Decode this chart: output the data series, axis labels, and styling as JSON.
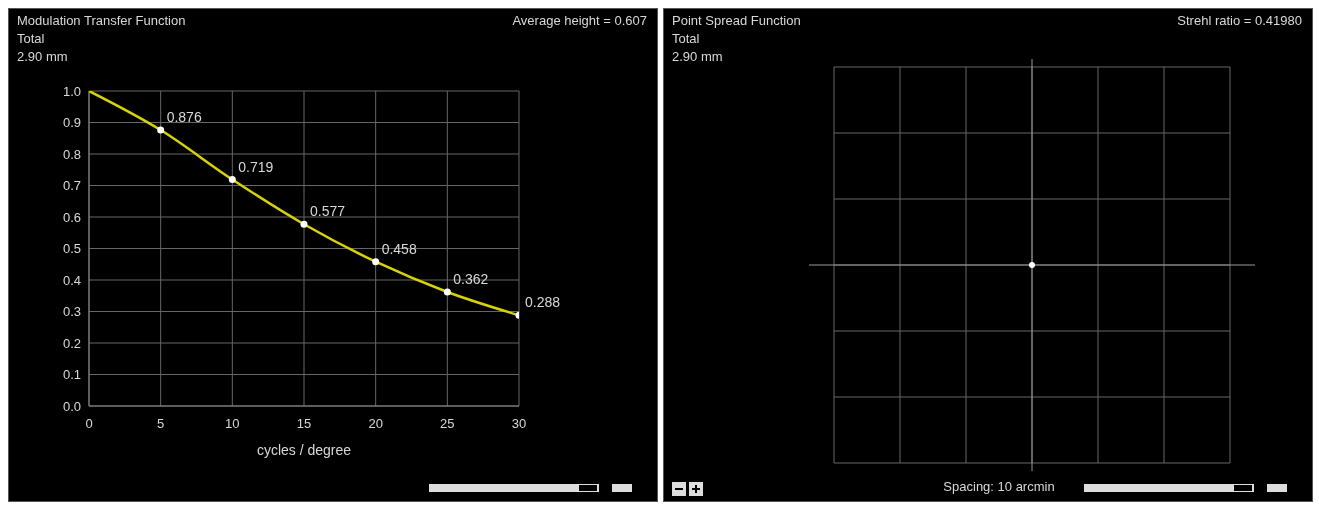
{
  "chart_data": [
    {
      "type": "line",
      "title": "Modulation Transfer Function",
      "subtitle": "Total",
      "xlabel": "cycles / degree",
      "annotations": [
        "2.90 mm",
        "Average height = 0.607"
      ],
      "x": [
        0,
        5,
        10,
        15,
        20,
        25,
        30
      ],
      "series": [
        {
          "color": "#d8d400",
          "values": [
            1.0,
            0.876,
            0.719,
            0.577,
            0.458,
            0.362,
            0.288
          ],
          "value_labels": [
            null,
            "0.876",
            "0.719",
            "0.577",
            "0.458",
            "0.362",
            "0.288"
          ]
        }
      ],
      "xlim": [
        0,
        30
      ],
      "xticks": [
        0,
        5,
        10,
        15,
        20,
        25,
        30
      ],
      "ylim": [
        0,
        1
      ],
      "yticks": [
        {
          "value": 0,
          "label": "0.0"
        },
        0.1,
        0.2,
        0.3,
        0.4,
        0.5,
        0.6,
        0.7,
        0.8,
        0.9,
        {
          "value": 1,
          "label": "1.0"
        }
      ],
      "grid": true,
      "marker": "circle"
    },
    {
      "type": "other",
      "title": "Point Spread Function",
      "subtitle": "Total",
      "annotations": [
        "2.90 mm",
        "Strehl ratio = 0.41980",
        "Spacing: 10 arcmin"
      ]
    }
  ]
}
